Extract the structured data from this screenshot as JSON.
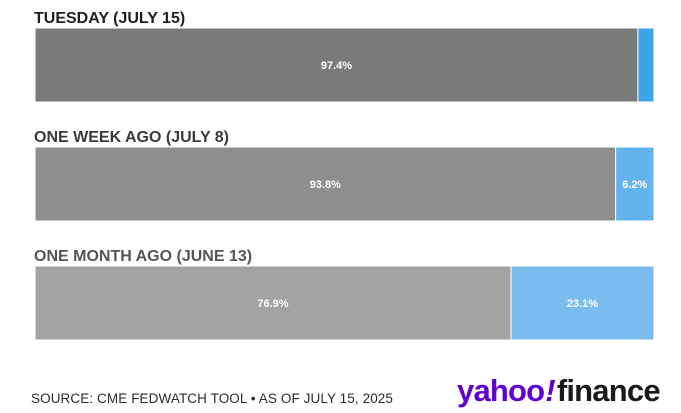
{
  "chart_data": {
    "type": "bar",
    "orientation": "horizontal-stacked-100",
    "categories": [
      "TUESDAY (JULY 15)",
      "ONE WEEK AGO (JULY 8)",
      "ONE MONTH AGO (JUNE 13)"
    ],
    "series": [
      {
        "values": [
          97.4,
          93.8,
          76.9
        ],
        "labels": [
          "97.4%",
          "93.8%",
          "76.9%"
        ],
        "colors": [
          "#7a7a7a",
          "#8e8e8e",
          "#a3a3a3"
        ]
      },
      {
        "values": [
          2.6,
          6.2,
          23.1
        ],
        "labels": [
          "",
          "6.2%",
          "23.1%"
        ],
        "colors": [
          "#3fa3ea",
          "#62b3ee",
          "#7bbcee"
        ]
      }
    ],
    "xlim": [
      0,
      100
    ]
  },
  "title_colors": [
    "#1f1f1f",
    "#3a3a3a",
    "#555555"
  ],
  "footer": {
    "source": "SOURCE: CME FEDWATCH TOOL • AS OF JULY 15, 2025",
    "logo_left": "yahoo",
    "logo_bang": "!",
    "logo_right": "finance"
  }
}
